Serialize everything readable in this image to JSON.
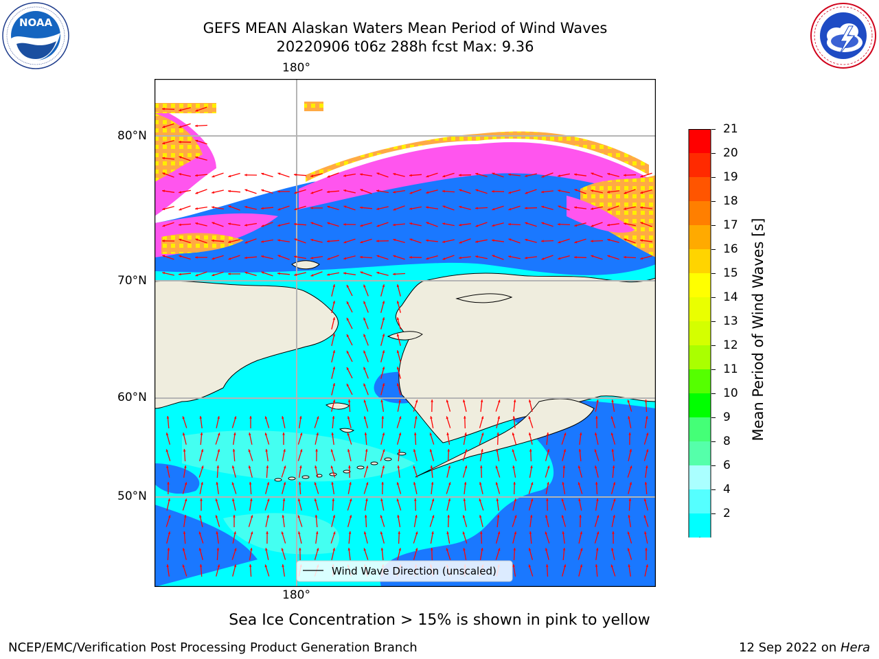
{
  "header": {
    "title_line1": "GEFS MEAN Alaskan Waters Mean Period of Wind Waves",
    "title_line2": "20220906 t06z 288h fcst   Max: 9.36"
  },
  "logos": {
    "left": {
      "text": "NOAA",
      "ring_text": "NATIONAL OCEANIC AND ATMOSPHERIC ADMINISTRATION · U.S. DEPARTMENT OF COMMERCE"
    },
    "right": {
      "ring_text": "NATIONAL WEATHER SERVICE"
    }
  },
  "map": {
    "lon_labels": {
      "top": "180°",
      "bottom": "180°"
    },
    "lat_labels": [
      "80°N",
      "70°N",
      "60°N",
      "50°N"
    ],
    "legend_text": "Wind Wave Direction (unscaled)",
    "colors": {
      "land": "#efedde",
      "ice_white": "#ffffff",
      "ice_pink": "#ff55ee",
      "ice_orange": "#ffaa44",
      "ice_yellow": "#ffee00",
      "wave_blue": "#1a78ff",
      "wave_cyan": "#00ffff",
      "wave_lightcyan": "#55ffee",
      "arrow": "#ff0000",
      "grid": "#b4b4b4"
    }
  },
  "colorbar": {
    "label": "Mean Period of Wind Waves [s]",
    "ticks": [
      "21",
      "20",
      "19",
      "18",
      "17",
      "16",
      "15",
      "14",
      "13",
      "12",
      "11",
      "10",
      "9",
      "8",
      "6",
      "4",
      "2"
    ],
    "colors": [
      "#ff0000",
      "#ff2a00",
      "#ff5500",
      "#ff7f00",
      "#ffaa00",
      "#ffd400",
      "#ffff00",
      "#eaff00",
      "#d4ff00",
      "#aaff00",
      "#55ff00",
      "#00ff00",
      "#44ff77",
      "#55ffaa",
      "#aaffff",
      "#55ffff",
      "#00ffff",
      "#1a78ff"
    ],
    "extend_color": "#0000ff"
  },
  "caption": "Sea Ice Concentration > 15% is shown in pink to yellow",
  "footer": {
    "left": "NCEP/EMC/Verification Post Processing Product Generation Branch",
    "right_date": "12 Sep 2022 on ",
    "right_host": "Hera"
  }
}
